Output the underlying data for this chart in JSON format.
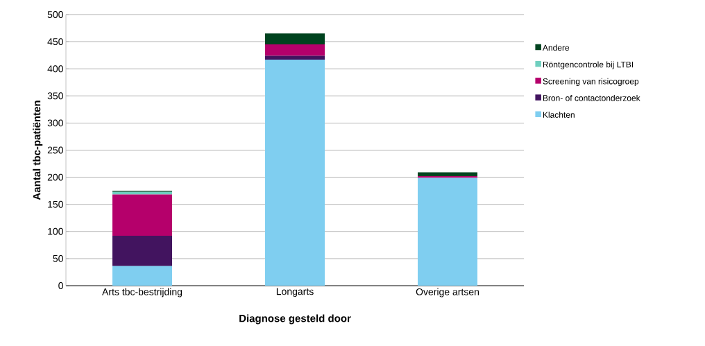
{
  "chart_data": {
    "type": "bar",
    "stacked": true,
    "xlabel": "Diagnose gesteld door",
    "ylabel": "Aantal tbc-patiënten",
    "categories": [
      "Arts tbc-bestrijding",
      "Longarts",
      "Overige artsen"
    ],
    "series": [
      {
        "name": "Klachten",
        "color": "#7fcef0",
        "values": [
          36,
          417,
          199
        ]
      },
      {
        "name": "Bron- of contactonderzoek",
        "color": "#42145f",
        "values": [
          56,
          7,
          null
        ]
      },
      {
        "name": "Screening van risicogroep",
        "color": "#b5006b",
        "values": [
          76,
          21,
          3
        ]
      },
      {
        "name": "Röntgencontrole bij LTBI",
        "color": "#6fcfbf",
        "values": [
          5,
          0,
          0
        ]
      },
      {
        "name": "Andere",
        "color": "#00431f",
        "values": [
          2,
          20,
          7
        ]
      }
    ],
    "ylim": [
      0,
      500
    ],
    "yticks": [
      0,
      50,
      100,
      150,
      200,
      250,
      300,
      350,
      400,
      450,
      500
    ],
    "grid": "y",
    "legend": "right"
  }
}
